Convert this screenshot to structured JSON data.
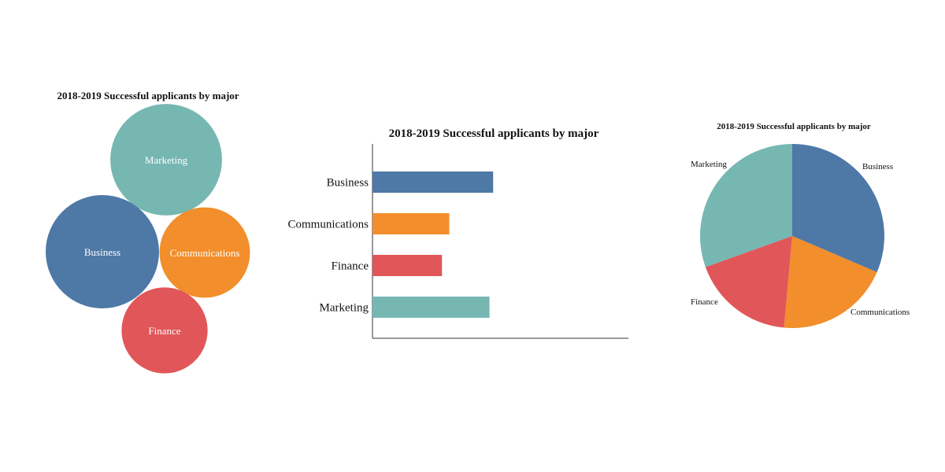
{
  "colors": {
    "Business": "#4e78a6",
    "Communications": "#f28e2b",
    "Finance": "#e15659",
    "Marketing": "#76b7b2"
  },
  "chart_data": [
    {
      "type": "bubble",
      "title": "2018-2019 Successful applicants by major",
      "categories": [
        "Marketing",
        "Business",
        "Communications",
        "Finance"
      ],
      "values": [
        32,
        33,
        21,
        19
      ]
    },
    {
      "type": "bar",
      "orientation": "horizontal",
      "title": "2018-2019 Successful applicants by major",
      "categories": [
        "Business",
        "Communications",
        "Finance",
        "Marketing"
      ],
      "values": [
        33,
        21,
        19,
        32
      ],
      "grid": false
    },
    {
      "type": "pie",
      "title": "2018-2019 Successful applicants by major",
      "categories": [
        "Business",
        "Communications",
        "Finance",
        "Marketing"
      ],
      "values": [
        33,
        21,
        19,
        32
      ]
    }
  ]
}
